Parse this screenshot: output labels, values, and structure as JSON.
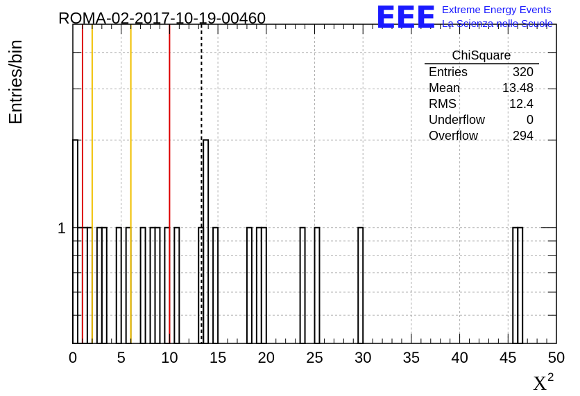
{
  "chart_data": {
    "type": "bar",
    "title": "ROMA-02-2017-10-19-00460",
    "xlabel": "X",
    "xlabel_sup": "2",
    "ylabel": "Entries/bin",
    "xlim": [
      0,
      50
    ],
    "ylog": true,
    "ylim": [
      0.4,
      5
    ],
    "bin_width": 0.5,
    "grid": true,
    "x_ticks": [
      0,
      5,
      10,
      15,
      20,
      25,
      30,
      35,
      40,
      45,
      50
    ],
    "y_tick_labels": [
      {
        "value": 1,
        "label": "1"
      }
    ],
    "bins": [
      {
        "x": 0.0,
        "y": 2
      },
      {
        "x": 0.5,
        "y": 1
      },
      {
        "x": 1.0,
        "y": 1
      },
      {
        "x": 1.5,
        "y": 1
      },
      {
        "x": 2.5,
        "y": 1
      },
      {
        "x": 3.0,
        "y": 1
      },
      {
        "x": 4.5,
        "y": 1
      },
      {
        "x": 5.5,
        "y": 1
      },
      {
        "x": 7.0,
        "y": 1
      },
      {
        "x": 8.0,
        "y": 1
      },
      {
        "x": 8.5,
        "y": 1
      },
      {
        "x": 9.5,
        "y": 1
      },
      {
        "x": 10.5,
        "y": 1
      },
      {
        "x": 13.0,
        "y": 1
      },
      {
        "x": 13.5,
        "y": 2
      },
      {
        "x": 14.5,
        "y": 1
      },
      {
        "x": 18.0,
        "y": 1
      },
      {
        "x": 19.0,
        "y": 1
      },
      {
        "x": 19.5,
        "y": 1
      },
      {
        "x": 23.5,
        "y": 1
      },
      {
        "x": 25.0,
        "y": 1
      },
      {
        "x": 29.5,
        "y": 1
      },
      {
        "x": 45.5,
        "y": 1
      },
      {
        "x": 46.0,
        "y": 1
      }
    ],
    "vertical_lines": [
      {
        "x": 1.0,
        "color": "#dd0000",
        "style": "solid"
      },
      {
        "x": 2.0,
        "color": "#f0c000",
        "style": "solid"
      },
      {
        "x": 6.0,
        "color": "#f0c000",
        "style": "solid"
      },
      {
        "x": 10.0,
        "color": "#dd0000",
        "style": "solid"
      },
      {
        "x": 13.3,
        "color": "#000000",
        "style": "dashed"
      }
    ],
    "stats": {
      "title": "ChiSquare",
      "rows": [
        {
          "label": "Entries",
          "value": "320"
        },
        {
          "label": "Mean",
          "value": "13.48"
        },
        {
          "label": "RMS",
          "value": "12.4"
        },
        {
          "label": "Underflow",
          "value": "0"
        },
        {
          "label": "Overflow",
          "value": "294"
        }
      ]
    }
  },
  "logo": {
    "text": "EEE",
    "line1": "Extreme Energy Events",
    "line2": "La Scienza nelle Scuole",
    "color": "#1a1aff"
  }
}
